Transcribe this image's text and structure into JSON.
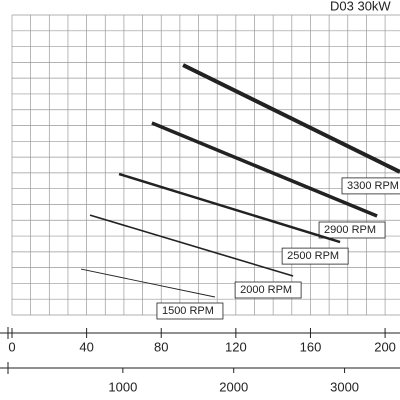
{
  "chart_data": {
    "type": "line",
    "title": "D03 30kW",
    "xlim": [
      0,
      208
    ],
    "xticks": [
      0,
      40,
      80,
      120,
      160,
      200
    ],
    "x2lim": [
      0,
      3500
    ],
    "x2ticks": [
      {
        "value": 1000,
        "label": "1000"
      },
      {
        "value": 2000,
        "label": "2000"
      },
      {
        "value": 3000,
        "label": "3000"
      }
    ],
    "ylim": [
      0,
      100
    ],
    "grid": true,
    "series": [
      {
        "name": "3300 RPM",
        "color": "#222",
        "width": 4,
        "x": [
          91.7,
          208
        ],
        "values": [
          83.3,
          47.7
        ]
      },
      {
        "name": "2900 RPM",
        "color": "#222",
        "width": 3.5,
        "x": [
          75,
          195.7
        ],
        "values": [
          64,
          33
        ]
      },
      {
        "name": "2500 RPM",
        "color": "#222",
        "width": 2.5,
        "x": [
          57.4,
          175.9
        ],
        "values": [
          47,
          24.3
        ]
      },
      {
        "name": "2000 RPM",
        "color": "#222",
        "width": 1.6,
        "x": [
          41.8,
          150.7
        ],
        "values": [
          33.3,
          13
        ]
      },
      {
        "name": "1500 RPM",
        "color": "#222",
        "width": 0.9,
        "x": [
          37,
          108.8
        ],
        "values": [
          15.3,
          6
        ]
      }
    ]
  }
}
